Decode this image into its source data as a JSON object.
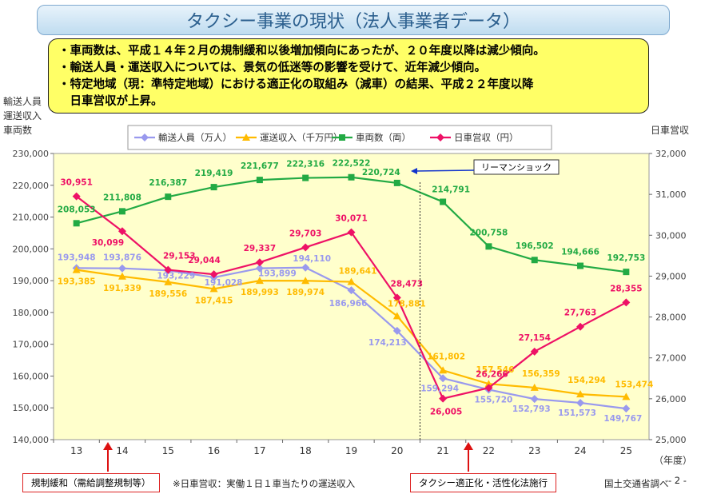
{
  "header": {
    "title": "タクシー事業の現状（法人事業者データ）"
  },
  "bullets": [
    "・車両数は、平成１４年２月の規制緩和以後増加傾向にあったが、２０年度以降は減少傾向。",
    "・輸送人員・運送収入については、景気の低迷等の影響を受けて、近年減少傾向。",
    "・特定地域（現：準特定地域）における適正化の取組み（減車）の結果、平成２２年度以降",
    "　日車営収が上昇。"
  ],
  "left_axis_label": [
    "輸送人員",
    "運送収入",
    "車両数"
  ],
  "right_axis_label": "日車営収",
  "annotations": {
    "lehman": "リーマンショック",
    "deregulation": "規制緩和（需給調整規制等）",
    "taxi_act": "タクシー適正化・活性化法施行",
    "footnote": "※日車営収：実働１日１車当たりの運送収入",
    "source": "国土交通省調べ",
    "page": "- 2 -"
  },
  "colors": {
    "passengers": "#9999ee",
    "revenue": "#ffbb00",
    "vehicles": "#22aa44",
    "daily": "#ee1166",
    "plot_bg": "#ffffcc"
  },
  "chart_data": {
    "type": "line",
    "x": [
      "13",
      "14",
      "15",
      "16",
      "17",
      "18",
      "19",
      "20",
      "21",
      "22",
      "23",
      "24",
      "25"
    ],
    "xlabel": "（年度）",
    "ylim": [
      140000,
      230000
    ],
    "y2lim": [
      25000,
      32000
    ],
    "y_ticks": [
      "140,000",
      "150,000",
      "160,000",
      "170,000",
      "180,000",
      "190,000",
      "200,000",
      "210,000",
      "220,000",
      "230,000"
    ],
    "y2_ticks": [
      "25,000",
      "26,000",
      "27,000",
      "28,000",
      "29,000",
      "30,000",
      "31,000",
      "32,000"
    ],
    "legend_position": "top",
    "series": [
      {
        "name": "輸送人員（万人）",
        "axis": "left",
        "marker": "diamond",
        "color": "#9999ee",
        "values": [
          193948,
          193876,
          193229,
          191028,
          193899,
          194110,
          186966,
          174213,
          159294,
          155720,
          152793,
          151573,
          149767
        ],
        "labels": [
          "193,948",
          "193,876",
          "193,229",
          "191,028",
          "193,899",
          "194,110",
          "186,966",
          "174,213",
          "159,294",
          "155,720",
          "152,793",
          "151,573",
          "149,767"
        ]
      },
      {
        "name": "運送収入（千万円）",
        "axis": "left",
        "marker": "triangle",
        "color": "#ffbb00",
        "values": [
          193385,
          191339,
          189556,
          187415,
          189993,
          189974,
          189641,
          178881,
          161802,
          157546,
          156359,
          154294,
          153474
        ],
        "labels": [
          "193,385",
          "191,339",
          "189,556",
          "187,415",
          "189,993",
          "189,974",
          "189,641",
          "178,881",
          "161,802",
          "157,546",
          "156,359",
          "154,294",
          "153,474"
        ]
      },
      {
        "name": "車両数（両）",
        "axis": "left",
        "marker": "square",
        "color": "#22aa44",
        "values": [
          208053,
          211808,
          216387,
          219419,
          221677,
          222316,
          222522,
          220724,
          214791,
          200758,
          196502,
          194666,
          192753
        ],
        "labels": [
          "208,053",
          "211,808",
          "216,387",
          "219,419",
          "221,677",
          "222,316",
          "222,522",
          "220,724",
          "214,791",
          "200,758",
          "196,502",
          "194,666",
          "192,753"
        ]
      },
      {
        "name": "日車営収（円）",
        "axis": "right",
        "marker": "diamond",
        "color": "#ee1166",
        "values": [
          30951,
          30099,
          29153,
          29044,
          29337,
          29703,
          30071,
          28473,
          26005,
          26266,
          27154,
          27763,
          28355
        ],
        "labels": [
          "30,951",
          "30,099",
          "29,153",
          "29,044",
          "29,337",
          "29,703",
          "30,071",
          "28,473",
          "26,005",
          "26,266",
          "27,154",
          "27,763",
          "28,355"
        ]
      }
    ]
  }
}
